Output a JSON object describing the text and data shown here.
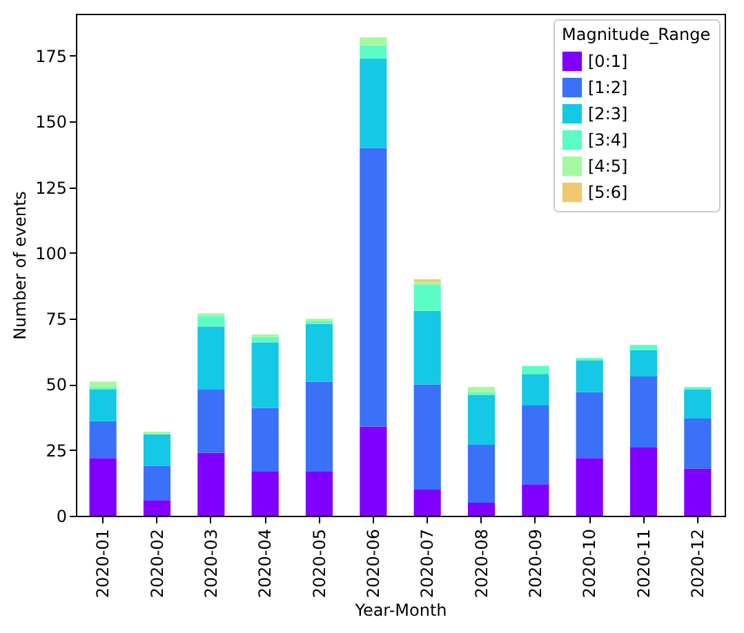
{
  "chart_data": {
    "type": "bar",
    "stacked": true,
    "xlabel": "Year-Month",
    "ylabel": "Number of events",
    "legend_title": "Magnitude_Range",
    "legend": "top right",
    "categories": [
      "2020-01",
      "2020-02",
      "2020-03",
      "2020-04",
      "2020-05",
      "2020-06",
      "2020-07",
      "2020-08",
      "2020-09",
      "2020-10",
      "2020-11",
      "2020-12"
    ],
    "series": [
      {
        "name": "[0:1]",
        "color": "#8000ff",
        "values": [
          22,
          6,
          24,
          17,
          17,
          34,
          10,
          5,
          12,
          22,
          26,
          18
        ]
      },
      {
        "name": "[1:2]",
        "color": "#3a71f8",
        "values": [
          14,
          13,
          24,
          24,
          34,
          106,
          40,
          22,
          30,
          25,
          27,
          19
        ]
      },
      {
        "name": "[2:3]",
        "color": "#14c8e6",
        "values": [
          12,
          12,
          24,
          25,
          22,
          34,
          28,
          19,
          12,
          12,
          10,
          11
        ]
      },
      {
        "name": "[3:4]",
        "color": "#5cfcc6",
        "values": [
          1,
          0,
          4,
          2,
          1,
          5,
          10,
          1,
          3,
          1,
          2,
          1
        ]
      },
      {
        "name": "[4:5]",
        "color": "#a6f8a0",
        "values": [
          2,
          1,
          1,
          1,
          1,
          3,
          1,
          2,
          0,
          0,
          0,
          0
        ]
      },
      {
        "name": "[5:6]",
        "color": "#f0c86e",
        "values": [
          0,
          0,
          0,
          0,
          0,
          0,
          1,
          0,
          0,
          0,
          0,
          0
        ]
      }
    ],
    "ylim": [
      0,
      191
    ],
    "yticks": [
      0,
      25,
      50,
      75,
      100,
      125,
      150,
      175
    ]
  }
}
